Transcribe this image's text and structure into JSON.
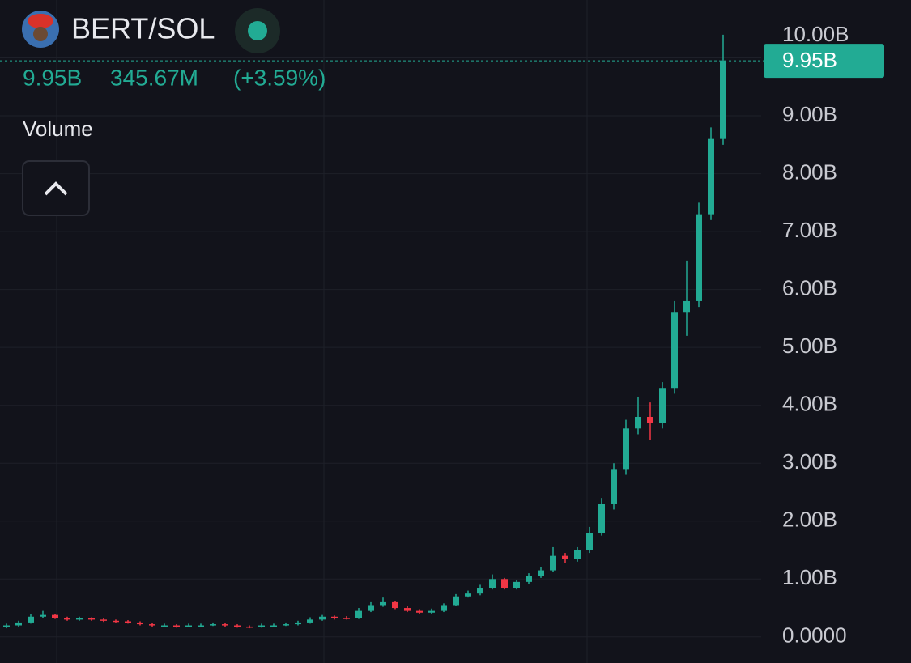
{
  "chart_data": {
    "type": "candlestick",
    "title": "BERT/SOL",
    "change": "345.67M",
    "change_percent": "(+3.59%)",
    "indicator_label": "Volume",
    "last_price": {
      "value": 9.95,
      "label": "9.95B"
    },
    "up_color": "#22ab94",
    "down_color": "#f23645",
    "grid": true,
    "ylim": [
      -0.45,
      11.0
    ],
    "yticks": [
      {
        "value": 0,
        "label": "0.0000"
      },
      {
        "value": 1,
        "label": "1.00B"
      },
      {
        "value": 2,
        "label": "2.00B"
      },
      {
        "value": 3,
        "label": "3.00B"
      },
      {
        "value": 4,
        "label": "4.00B"
      },
      {
        "value": 5,
        "label": "5.00B"
      },
      {
        "value": 6,
        "label": "6.00B"
      },
      {
        "value": 7,
        "label": "7.00B"
      },
      {
        "value": 8,
        "label": "8.00B"
      },
      {
        "value": 9,
        "label": "9.00B"
      },
      {
        "value": 10,
        "label": "10.00B"
      }
    ],
    "categories": [
      null,
      null,
      null,
      null,
      null,
      null,
      null,
      null,
      null,
      null,
      null,
      null,
      null,
      null,
      null,
      null,
      null,
      null,
      null,
      null,
      null,
      null,
      null,
      null,
      null,
      null,
      null,
      null,
      null,
      null,
      null,
      null,
      null,
      null,
      null,
      null,
      null,
      null,
      null,
      null,
      null,
      null,
      null,
      null,
      null,
      null,
      null,
      null,
      null,
      null,
      null,
      null,
      null,
      null,
      null,
      null,
      null,
      null,
      null,
      null
    ],
    "open": [
      0.18,
      0.2,
      0.25,
      0.35,
      0.38,
      0.33,
      0.3,
      0.32,
      0.3,
      0.28,
      0.27,
      0.25,
      0.22,
      0.2,
      0.2,
      0.18,
      0.2,
      0.2,
      0.22,
      0.2,
      0.18,
      0.17,
      0.2,
      0.2,
      0.22,
      0.25,
      0.3,
      0.35,
      0.33,
      0.32,
      0.45,
      0.55,
      0.6,
      0.5,
      0.45,
      0.42,
      0.45,
      0.55,
      0.7,
      0.75,
      0.85,
      1.0,
      0.85,
      0.95,
      1.05,
      1.15,
      1.4,
      1.35,
      1.5,
      1.8,
      2.3,
      2.9,
      3.6,
      3.8,
      3.7,
      4.3,
      5.6,
      5.8,
      7.3,
      8.6
    ],
    "high": [
      0.23,
      0.28,
      0.4,
      0.45,
      0.4,
      0.35,
      0.35,
      0.34,
      0.32,
      0.3,
      0.29,
      0.27,
      0.24,
      0.23,
      0.22,
      0.23,
      0.23,
      0.25,
      0.24,
      0.22,
      0.2,
      0.23,
      0.23,
      0.25,
      0.28,
      0.34,
      0.38,
      0.37,
      0.36,
      0.5,
      0.6,
      0.68,
      0.62,
      0.53,
      0.48,
      0.49,
      0.58,
      0.74,
      0.8,
      0.9,
      1.08,
      1.02,
      0.98,
      1.1,
      1.2,
      1.55,
      1.45,
      1.55,
      1.9,
      2.4,
      3.0,
      3.75,
      4.15,
      4.05,
      4.4,
      5.8,
      6.5,
      7.5,
      8.8,
      10.4
    ],
    "low": [
      0.15,
      0.18,
      0.23,
      0.33,
      0.31,
      0.28,
      0.28,
      0.28,
      0.26,
      0.25,
      0.23,
      0.2,
      0.18,
      0.18,
      0.16,
      0.17,
      0.18,
      0.19,
      0.18,
      0.16,
      0.15,
      0.16,
      0.18,
      0.19,
      0.2,
      0.23,
      0.28,
      0.3,
      0.3,
      0.31,
      0.43,
      0.52,
      0.48,
      0.43,
      0.4,
      0.4,
      0.43,
      0.53,
      0.68,
      0.72,
      0.82,
      0.82,
      0.82,
      0.92,
      1.02,
      1.12,
      1.28,
      1.3,
      1.45,
      1.75,
      2.2,
      2.8,
      3.5,
      3.4,
      3.6,
      4.2,
      5.2,
      5.7,
      7.2,
      8.5
    ],
    "close": [
      0.2,
      0.25,
      0.35,
      0.38,
      0.33,
      0.3,
      0.32,
      0.3,
      0.28,
      0.27,
      0.25,
      0.22,
      0.2,
      0.2,
      0.18,
      0.2,
      0.2,
      0.22,
      0.2,
      0.18,
      0.17,
      0.2,
      0.2,
      0.22,
      0.25,
      0.3,
      0.35,
      0.33,
      0.32,
      0.45,
      0.55,
      0.6,
      0.5,
      0.45,
      0.42,
      0.45,
      0.55,
      0.7,
      0.75,
      0.85,
      1.0,
      0.85,
      0.95,
      1.05,
      1.15,
      1.4,
      1.35,
      1.5,
      1.8,
      2.3,
      2.9,
      3.6,
      3.8,
      3.7,
      4.3,
      5.6,
      5.8,
      7.3,
      8.6,
      9.95
    ]
  }
}
